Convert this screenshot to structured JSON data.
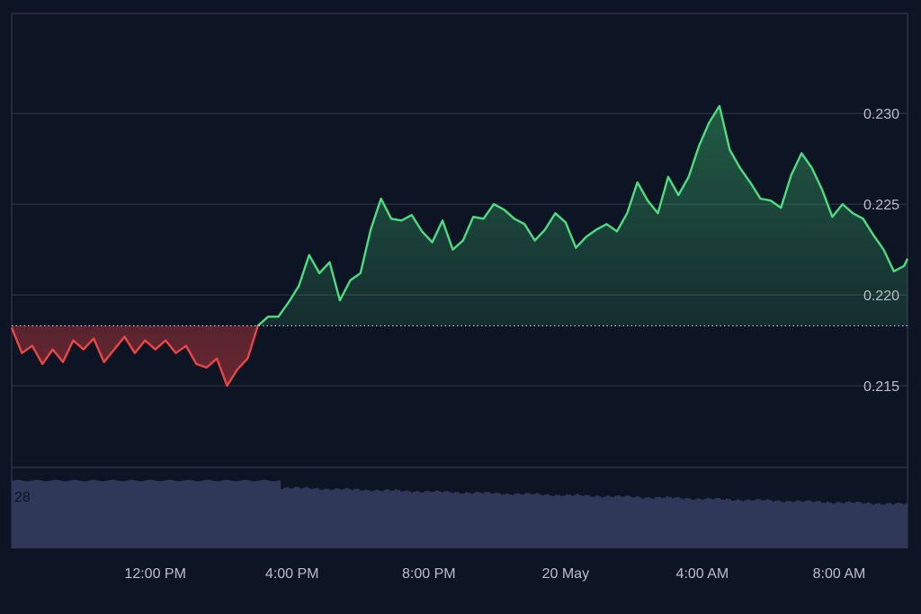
{
  "chart_data": {
    "type": "area",
    "baseline": 0.2183,
    "ylim": [
      0.2105,
      0.2355
    ],
    "y_ticks": [
      "0.230",
      "0.225",
      "0.220",
      "0.215"
    ],
    "y_tick_values": [
      0.23,
      0.225,
      0.22,
      0.215
    ],
    "x_ticks": [
      "12:00 PM",
      "4:00 PM",
      "8:00 PM",
      "20 May",
      "4:00 AM",
      "8:00 AM"
    ],
    "x_tick_hours": [
      12,
      16,
      20,
      24,
      28,
      32
    ],
    "x_range_hours": [
      7.8,
      34.0
    ],
    "grid": true,
    "price_series": {
      "x_hours": [
        7.8,
        8.1,
        8.4,
        8.7,
        9.0,
        9.3,
        9.6,
        9.9,
        10.2,
        10.5,
        10.8,
        11.1,
        11.4,
        11.7,
        12.0,
        12.3,
        12.6,
        12.9,
        13.2,
        13.5,
        13.8,
        14.1,
        14.4,
        14.7,
        15.0,
        15.3,
        15.6,
        15.9,
        16.2,
        16.5,
        16.8,
        17.1,
        17.4,
        17.7,
        18.0,
        18.3,
        18.6,
        18.9,
        19.2,
        19.5,
        19.8,
        20.1,
        20.4,
        20.7,
        21.0,
        21.3,
        21.6,
        21.9,
        22.2,
        22.5,
        22.8,
        23.1,
        23.4,
        23.7,
        24.0,
        24.3,
        24.6,
        24.9,
        25.2,
        25.5,
        25.8,
        26.1,
        26.4,
        26.7,
        27.0,
        27.3,
        27.6,
        27.9,
        28.2,
        28.5,
        28.8,
        29.1,
        29.4,
        29.7,
        30.0,
        30.3,
        30.6,
        30.9,
        31.2,
        31.5,
        31.8,
        32.1,
        32.4,
        32.7,
        33.0,
        33.3,
        33.6,
        33.9,
        34.0
      ],
      "prices": [
        0.2182,
        0.2168,
        0.2172,
        0.2162,
        0.217,
        0.2163,
        0.2175,
        0.217,
        0.2176,
        0.2163,
        0.217,
        0.2177,
        0.2168,
        0.2175,
        0.217,
        0.2175,
        0.2168,
        0.2172,
        0.2162,
        0.216,
        0.2165,
        0.215,
        0.2159,
        0.2165,
        0.2183,
        0.2188,
        0.2188,
        0.2196,
        0.2205,
        0.2222,
        0.2212,
        0.2218,
        0.2197,
        0.2208,
        0.2212,
        0.2236,
        0.2253,
        0.2242,
        0.2241,
        0.2244,
        0.2235,
        0.2229,
        0.2241,
        0.2225,
        0.223,
        0.2243,
        0.2242,
        0.225,
        0.2247,
        0.2242,
        0.2239,
        0.223,
        0.2236,
        0.2245,
        0.224,
        0.2226,
        0.2232,
        0.2236,
        0.2239,
        0.2235,
        0.2245,
        0.2262,
        0.2252,
        0.2245,
        0.2265,
        0.2255,
        0.2265,
        0.2282,
        0.2295,
        0.2304,
        0.228,
        0.227,
        0.2262,
        0.2253,
        0.2252,
        0.2248,
        0.2266,
        0.2278,
        0.227,
        0.2258,
        0.2243,
        0.225,
        0.2245,
        0.2242,
        0.2233,
        0.2225,
        0.2213,
        0.2216,
        0.222
      ]
    },
    "volume_series": {
      "x_range_hours": [
        7.8,
        34.0
      ],
      "bar_count": 330,
      "start_fraction": 0.92,
      "end_fraction": 0.6
    },
    "volume_label": "28"
  },
  "colors": {
    "background": "#0d1424",
    "up_line": "#4ade80",
    "down_line": "#ef4444",
    "grid": "#3a4154",
    "baseline": "#c5cad6",
    "volume": "#2f3859",
    "tick_text": "#b9bfcc"
  }
}
